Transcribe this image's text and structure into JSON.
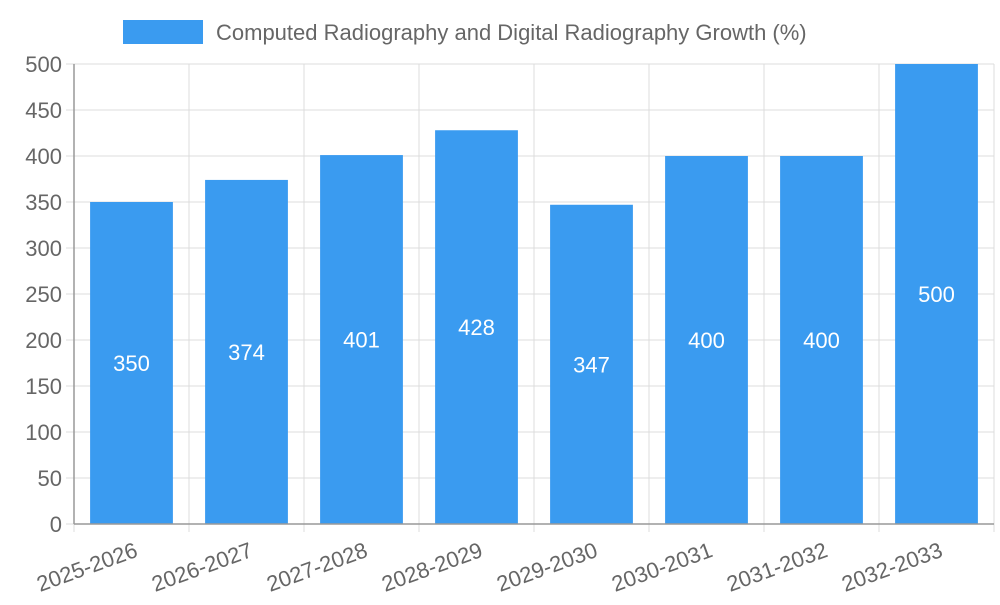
{
  "chart_data": {
    "type": "bar",
    "title": "",
    "xlabel": "",
    "ylabel": "",
    "ylim": [
      0,
      500
    ],
    "y_ticks": [
      0,
      50,
      100,
      150,
      200,
      250,
      300,
      350,
      400,
      450,
      500
    ],
    "grid": true,
    "legend_position": "top-center",
    "categories": [
      "2025-2026",
      "2026-2027",
      "2027-2028",
      "2028-2029",
      "2029-2030",
      "2030-2031",
      "2031-2032",
      "2032-2033"
    ],
    "series": [
      {
        "name": "Computed Radiography and Digital Radiography Growth (%)",
        "color": "#3a9bf0",
        "values": [
          350,
          374,
          401,
          428,
          347,
          400,
          400,
          500
        ]
      }
    ]
  },
  "colors": {
    "bar": "#3a9bf0",
    "grid": "#dcdcdc",
    "axis": "#999999",
    "tick_text": "#666666",
    "bar_label": "#ffffff",
    "legend_text": "#666666"
  }
}
